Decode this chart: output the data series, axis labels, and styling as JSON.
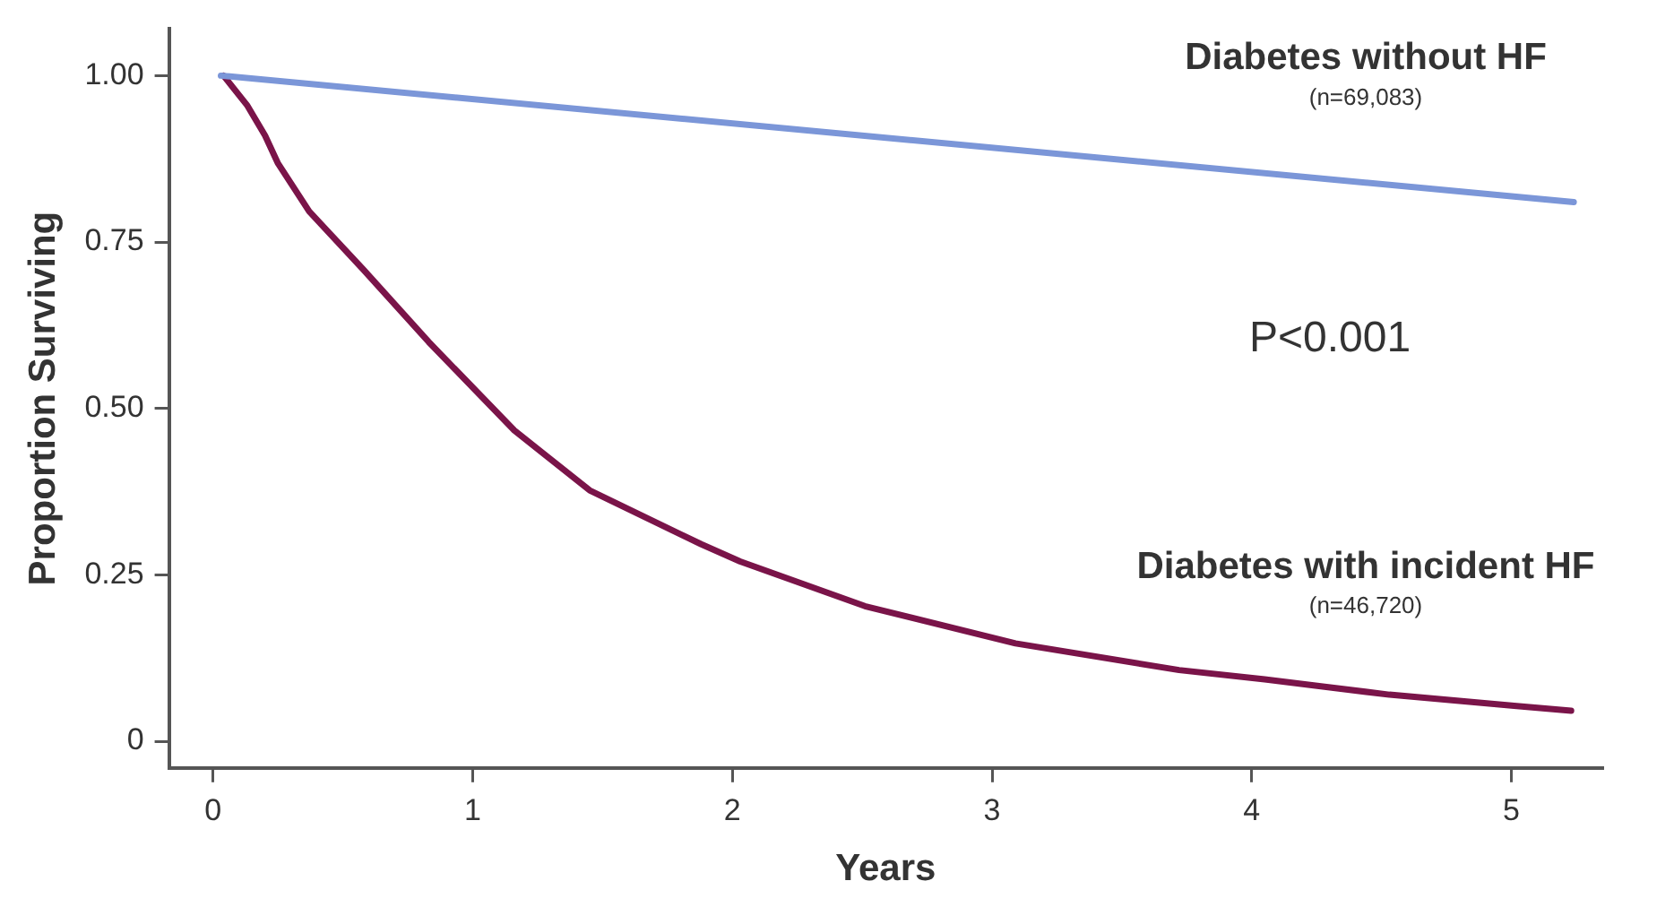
{
  "chart_data": {
    "type": "line",
    "xlabel": "Years",
    "ylabel": "Proportion Surviving",
    "xlim": [
      -0.17,
      5.35
    ],
    "xticks": [
      0,
      1,
      2,
      3,
      4,
      5
    ],
    "ylim": [
      -0.04,
      1.07
    ],
    "yticks": [
      {
        "value": 0,
        "label": "0"
      },
      {
        "value": 0.25,
        "label": "0.25"
      },
      {
        "value": 0.5,
        "label": "0.50"
      },
      {
        "value": 0.75,
        "label": "0.75"
      },
      {
        "value": 1,
        "label": "1.00"
      }
    ],
    "grid": false,
    "legend": false,
    "marker": "none",
    "line_style": "solid",
    "series": [
      {
        "name": "Diabetes without HF",
        "color": "#7b96d8",
        "x": [
          0.03,
          5.24
        ],
        "values": [
          1.0,
          0.81
        ]
      },
      {
        "name": "Diabetes with incident HF",
        "color": "#7a1449",
        "x": [
          0.04,
          0.13,
          0.2,
          0.25,
          0.37,
          0.58,
          0.83,
          1.16,
          1.45,
          1.88,
          2.03,
          2.51,
          3.09,
          3.72,
          4.05,
          4.53,
          5.02,
          5.23
        ],
        "values": [
          1.0,
          0.956,
          0.91,
          0.868,
          0.796,
          0.708,
          0.6,
          0.467,
          0.377,
          0.296,
          0.27,
          0.203,
          0.147,
          0.107,
          0.093,
          0.07,
          0.053,
          0.046
        ]
      }
    ],
    "annotations": [
      "(n=69,083)",
      "(n=46,720)",
      "P<0.001"
    ]
  }
}
